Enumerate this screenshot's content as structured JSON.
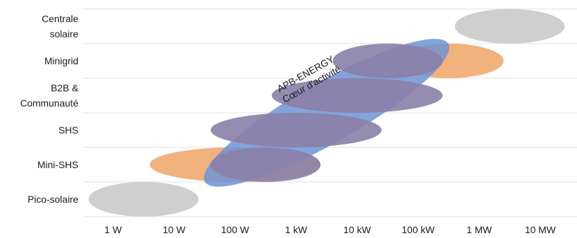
{
  "chart_data": {
    "type": "range-bubble",
    "categories": [
      "Centrale solaire",
      "Minigrid",
      "B2B & Communauté",
      "SHS",
      "Mini-SHS",
      "Pico-solaire"
    ],
    "category_label_lines": [
      [
        "Centrale",
        "solaire"
      ],
      [
        "Minigrid"
      ],
      [
        "B2B &",
        "Communauté"
      ],
      [
        "SHS"
      ],
      [
        "Mini-SHS"
      ],
      [
        "Pico-solaire"
      ]
    ],
    "x_ticks": [
      "1 W",
      "10 W",
      "100 W",
      "1 kW",
      "10 kW",
      "100 kW",
      "1 MW",
      "10 MW"
    ],
    "x_scale": "log",
    "grid": "horizontal",
    "colors": {
      "grey": "#cfcfcf",
      "orange": "#f2b27e",
      "blue": "#6f93d3",
      "overlap": "#8a7fa8",
      "grid": "#e2e2e2",
      "text": "#1a1a1a"
    },
    "ranges": [
      {
        "category": "Centrale solaire",
        "min": "1 MW",
        "max": "10 MW",
        "color": "grey"
      },
      {
        "category": "Minigrid",
        "min": "100 kW",
        "max": "1 MW",
        "color": "orange"
      },
      {
        "category": "Minigrid",
        "min": "10 kW",
        "max": "100 kW",
        "color": "overlap"
      },
      {
        "category": "B2B & Communauté",
        "min": "1 kW",
        "max": "100 kW",
        "color": "overlap"
      },
      {
        "category": "SHS",
        "min": "100 W",
        "max": "10 kW",
        "color": "overlap"
      },
      {
        "category": "Mini-SHS",
        "min": "10 W",
        "max": "1 kW",
        "color": "orange"
      },
      {
        "category": "Mini-SHS",
        "min": "100 W",
        "max": "1 kW",
        "color": "overlap"
      },
      {
        "category": "Pico-solaire",
        "min": "1 W",
        "max": "10 W",
        "color": "grey"
      }
    ],
    "core_range": {
      "label_lines": [
        "APB-ENERGY",
        "Cœur d'activité"
      ],
      "from_category": "Mini-SHS",
      "to_category": "Minigrid",
      "min": "100 W",
      "max": "100 kW",
      "color": "blue"
    }
  }
}
